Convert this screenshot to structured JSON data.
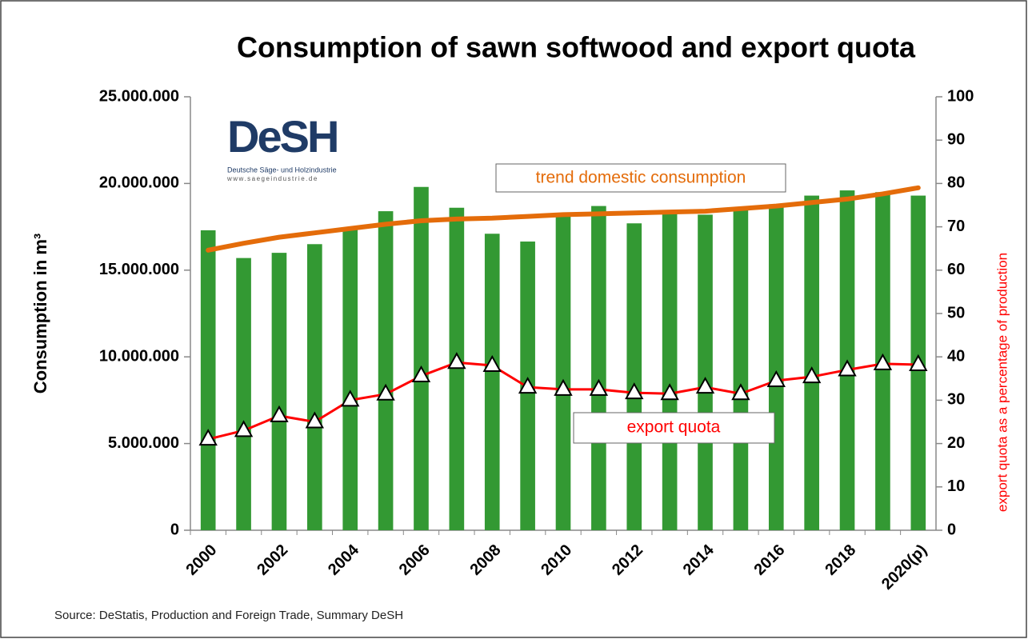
{
  "chart_data": {
    "type": "bar",
    "title": "Consumption of sawn softwood and export quota",
    "ylabel": "Consumption in m³",
    "y2label": "export quota as a percentage of production",
    "source": "Source: DeStatis, Production and Foreign Trade, Summary DeSH",
    "logo": {
      "name": "DeSH",
      "subtitle": "Deutsche Säge- und Holzindustrie",
      "url": "www.saegeindustrie.de"
    },
    "annotations": [
      "trend domestic consumption",
      "export quota"
    ],
    "categories": [
      "2000",
      null,
      "2002",
      null,
      "2004",
      null,
      "2006",
      null,
      "2008",
      null,
      "2010",
      null,
      "2012",
      null,
      "2014",
      null,
      "2016",
      null,
      "2018",
      null,
      "2020(p)"
    ],
    "series": [
      {
        "type": "bar",
        "color": "#339933",
        "values": [
          17300000.0,
          15700000.0,
          16000000.0,
          16500000.0,
          17400000.0,
          18400000.0,
          19800000.0,
          18600000.0,
          17100000.0,
          16650000.0,
          18200000.0,
          18700000.0,
          17700000.0,
          18300000.0,
          18200000.0,
          18500000.0,
          18800000.0,
          19300000.0,
          19600000.0,
          19500000.0,
          19300000.0
        ]
      },
      {
        "type": "line",
        "color": "#e46c0a",
        "values": [
          16150000.0,
          16550000.0,
          16900000.0,
          17150000.0,
          17400000.0,
          17650000.0,
          17850000.0,
          17950000.0,
          18000000.0,
          18100000.0,
          18200000.0,
          18250000.0,
          18300000.0,
          18350000.0,
          18400000.0,
          18550000.0,
          18700000.0,
          18900000.0,
          19100000.0,
          19400000.0,
          19750000.0
        ]
      },
      {
        "type": "line",
        "axis": "y2",
        "color": "#ff0000",
        "marker": "triangle",
        "values": [
          21,
          23,
          26.4,
          25,
          30,
          31.4,
          35.6,
          38.7,
          38,
          33,
          32.5,
          32.5,
          31.7,
          31.5,
          33,
          31.5,
          34.5,
          35.4,
          37,
          38.4,
          38.2
        ]
      }
    ],
    "ylim": [
      0,
      25000000
    ],
    "yticks": [
      0,
      {
        "value": 5000000,
        "label": "5.000.000"
      },
      {
        "value": 10000000,
        "label": "10.000.000"
      },
      {
        "value": 15000000,
        "label": "15.000.000"
      },
      {
        "value": 20000000,
        "label": "20.000.000"
      },
      {
        "value": 25000000,
        "label": "25.000.000"
      }
    ],
    "y2lim": [
      0,
      100
    ],
    "y2ticks": [
      0,
      10,
      20,
      30,
      40,
      50,
      60,
      70,
      80,
      90,
      100
    ]
  }
}
